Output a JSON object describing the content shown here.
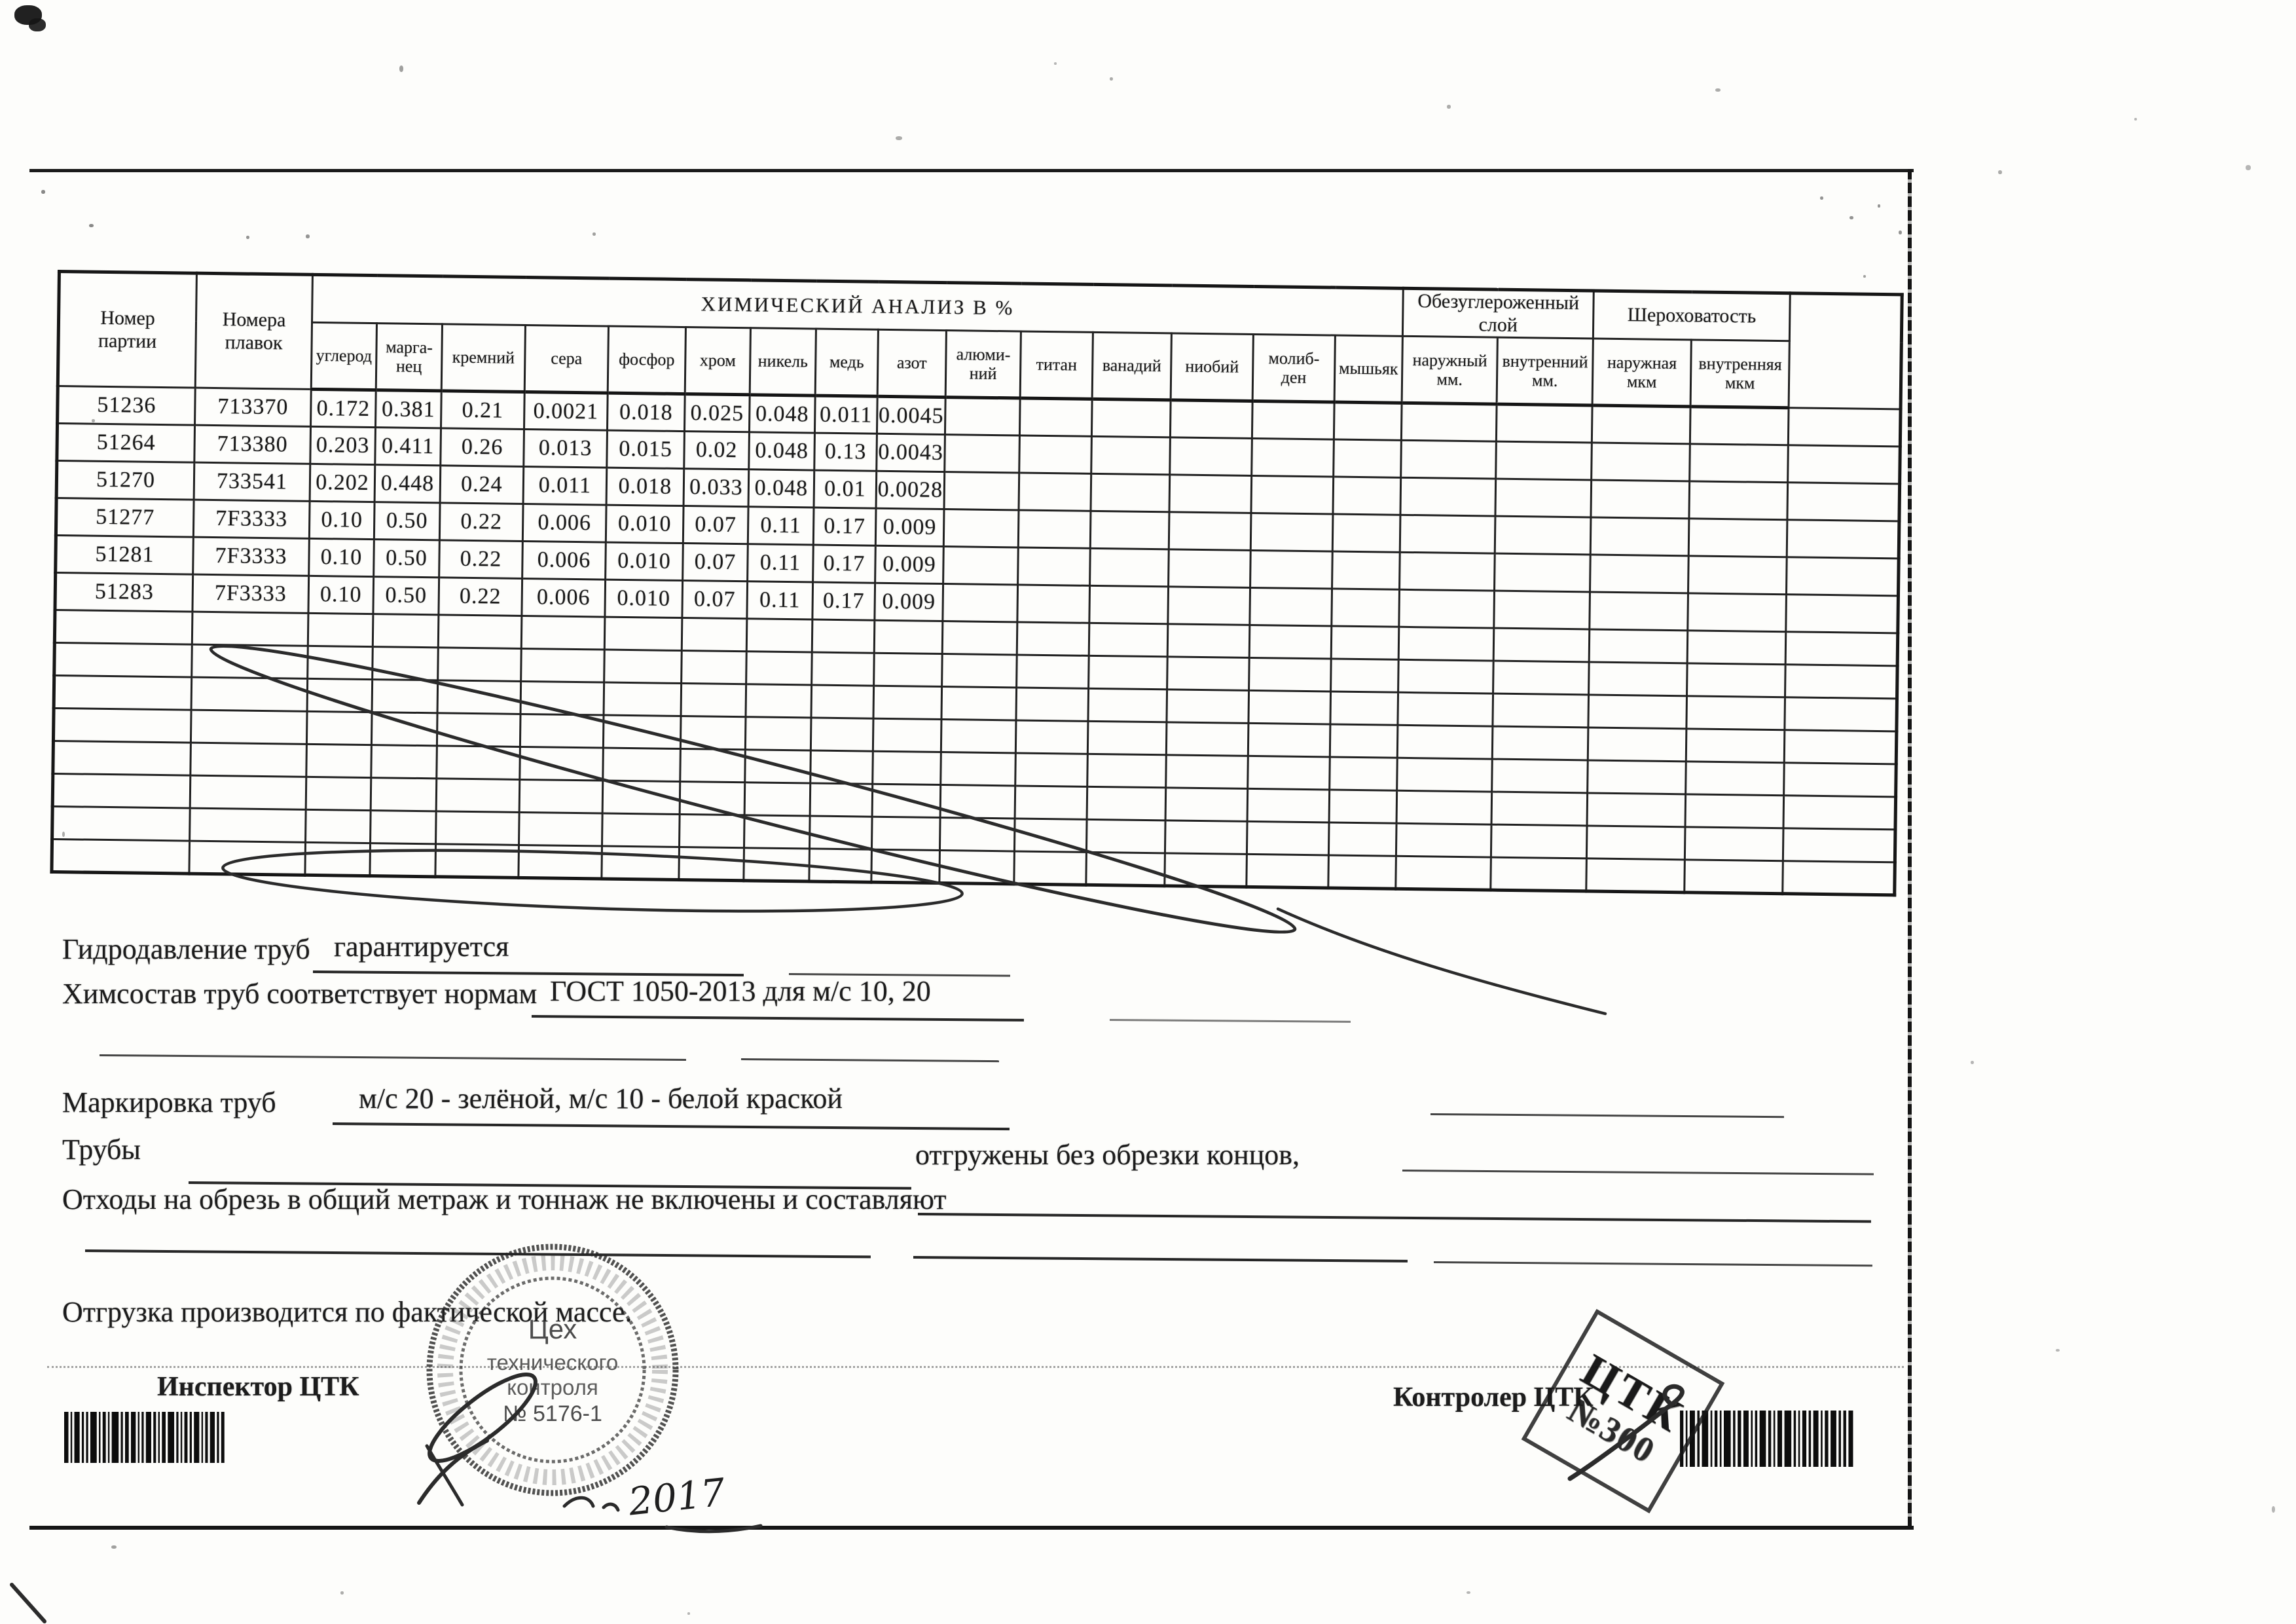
{
  "table": {
    "batch_header": "Номер\nпартии",
    "heats_header": "Номера\nплавок",
    "chem_title": "ХИМИЧЕСКИЙ АНАЛИЗ В %",
    "decarb_title": "Обезуглероженный\nслой",
    "roughness_title": "Шероховатость",
    "columns": [
      "углерод",
      "марга-\nнец",
      "кремний",
      "сера",
      "фосфор",
      "хром",
      "никель",
      "медь",
      "азот",
      "алюми-\nний",
      "титан",
      "ванадий",
      "ниобий",
      "молиб-\nден",
      "мышьяк",
      "наружный\nмм.",
      "внутренний\nмм.",
      "наружная\nмкм",
      "внутренняя\nмкм"
    ],
    "rows": [
      {
        "batch": "51236",
        "heat": "713370",
        "values": [
          "0.172",
          "0.381",
          "0.21",
          "0.0021",
          "0.018",
          "0.025",
          "0.048",
          "0.011",
          "0.0045"
        ]
      },
      {
        "batch": "51264",
        "heat": "713380",
        "values": [
          "0.203",
          "0.411",
          "0.26",
          "0.013",
          "0.015",
          "0.02",
          "0.048",
          "0.13",
          "0.0043"
        ]
      },
      {
        "batch": "51270",
        "heat": "733541",
        "values": [
          "0.202",
          "0.448",
          "0.24",
          "0.011",
          "0.018",
          "0.033",
          "0.048",
          "0.01",
          "0.0028"
        ]
      },
      {
        "batch": "51277",
        "heat": "7F3333",
        "values": [
          "0.10",
          "0.50",
          "0.22",
          "0.006",
          "0.010",
          "0.07",
          "0.11",
          "0.17",
          "0.009"
        ]
      },
      {
        "batch": "51281",
        "heat": "7F3333",
        "values": [
          "0.10",
          "0.50",
          "0.22",
          "0.006",
          "0.010",
          "0.07",
          "0.11",
          "0.17",
          "0.009"
        ]
      },
      {
        "batch": "51283",
        "heat": "7F3333",
        "values": [
          "0.10",
          "0.50",
          "0.22",
          "0.006",
          "0.010",
          "0.07",
          "0.11",
          "0.17",
          "0.009"
        ]
      }
    ],
    "empty_rows": 8
  },
  "lines": {
    "hydro_label": "Гидродавление труб",
    "hydro_value": "гарантируется",
    "chem_label": "Химсостав труб соответствует нормам",
    "chem_value": "ГОСТ 1050-2013 для м/с 10, 20",
    "marking_label": "Маркировка труб",
    "marking_value": "м/с 20 - зелёной, м/с 10 - белой краской",
    "pipes_label": "Трубы",
    "pipes_note": "отгружены без обрезки концов,",
    "waste_label": "Отходы на обрезь в общий метраж и тоннаж не включены и составляют",
    "shipping_note": "Отгрузка производится по фактической массе.",
    "inspector_label": "Инспектор ЦТК",
    "controller_label": "Контролер ЦТК"
  },
  "stamps": {
    "round": {
      "line1": "Цех",
      "line2": "технического",
      "line3": "контроля",
      "line4": "№ 5176-1"
    },
    "square": {
      "line1": "ЦТК",
      "line2": "№300"
    },
    "handwritten_year": "2017"
  }
}
